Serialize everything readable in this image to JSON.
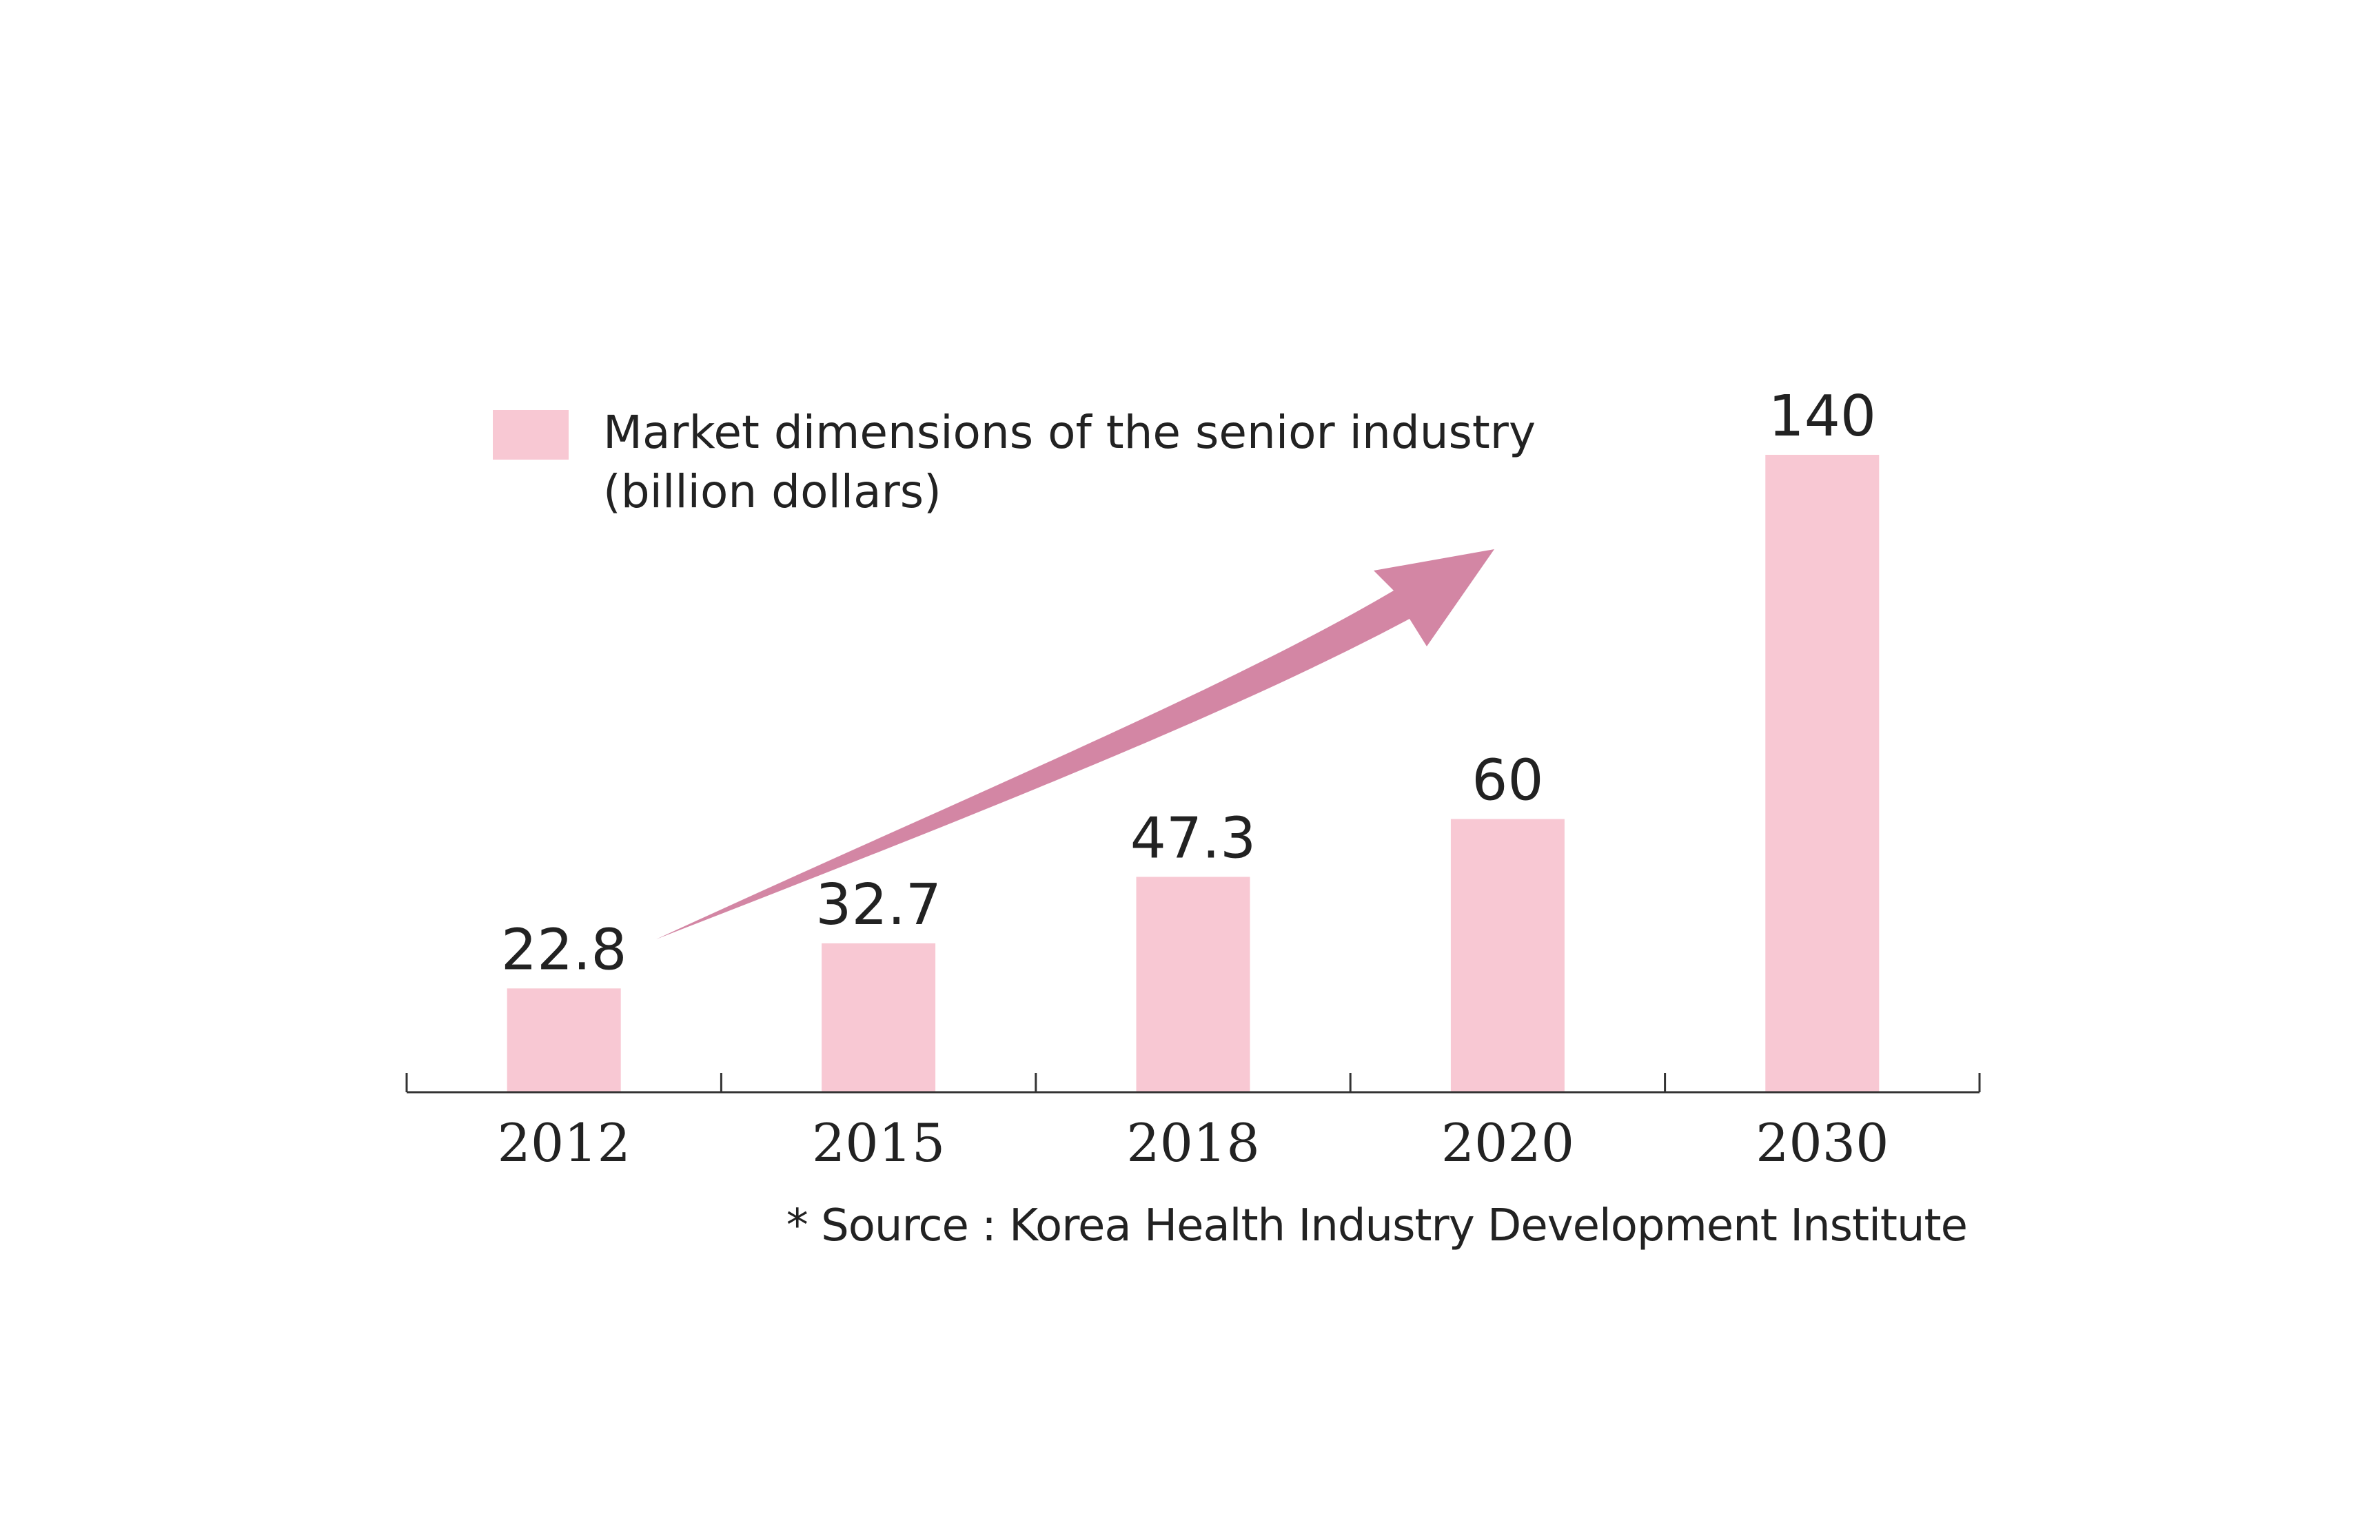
{
  "colors": {
    "bar": "#f8c8d3",
    "arrow": "#d386a4",
    "axis": "#333333",
    "text": "#222222"
  },
  "legend": {
    "label": "Market dimensions of the senior industry (billion dollars)"
  },
  "source": "* Source : Korea Health Industry Development Institute",
  "chart_data": {
    "type": "bar",
    "categories": [
      "2012",
      "2015",
      "2018",
      "2020",
      "2030"
    ],
    "values": [
      22.8,
      32.7,
      47.3,
      60,
      140
    ],
    "value_labels": [
      "22.8",
      "32.7",
      "47.3",
      "60",
      "140"
    ],
    "series": [
      {
        "name": "Market dimensions of the senior industry (billion dollars)",
        "values": [
          22.8,
          32.7,
          47.3,
          60,
          140
        ]
      }
    ],
    "title": "",
    "xlabel": "",
    "ylabel": "",
    "ylim": [
      0,
      140
    ],
    "grid": false,
    "legend_position": "top-left",
    "annotations": [
      "upward trend arrow"
    ]
  }
}
